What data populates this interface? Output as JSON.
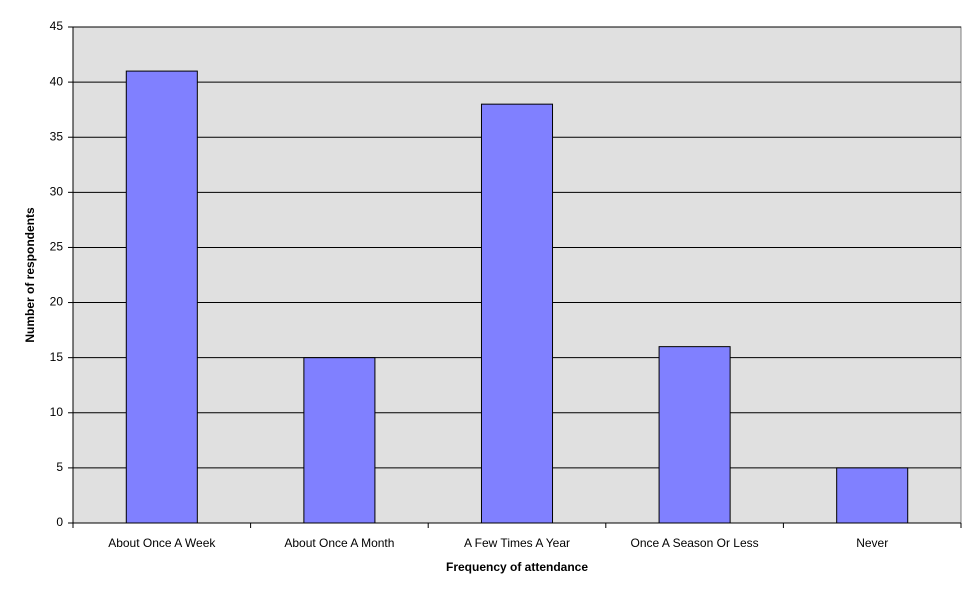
{
  "chart_data": {
    "type": "bar",
    "x_label": "Frequency of attendance",
    "y_label": "Number of respondents",
    "categories": [
      "About Once A Week",
      "About Once A Month",
      "A Few Times A Year",
      "Once A Season Or Less",
      "Never"
    ],
    "values": [
      41,
      15,
      38,
      16,
      5
    ],
    "color": "#8080ff",
    "ylim": [
      0,
      45
    ],
    "yticks": [
      0,
      5,
      10,
      15,
      20,
      25,
      30,
      35,
      40,
      45
    ],
    "grid": true
  }
}
